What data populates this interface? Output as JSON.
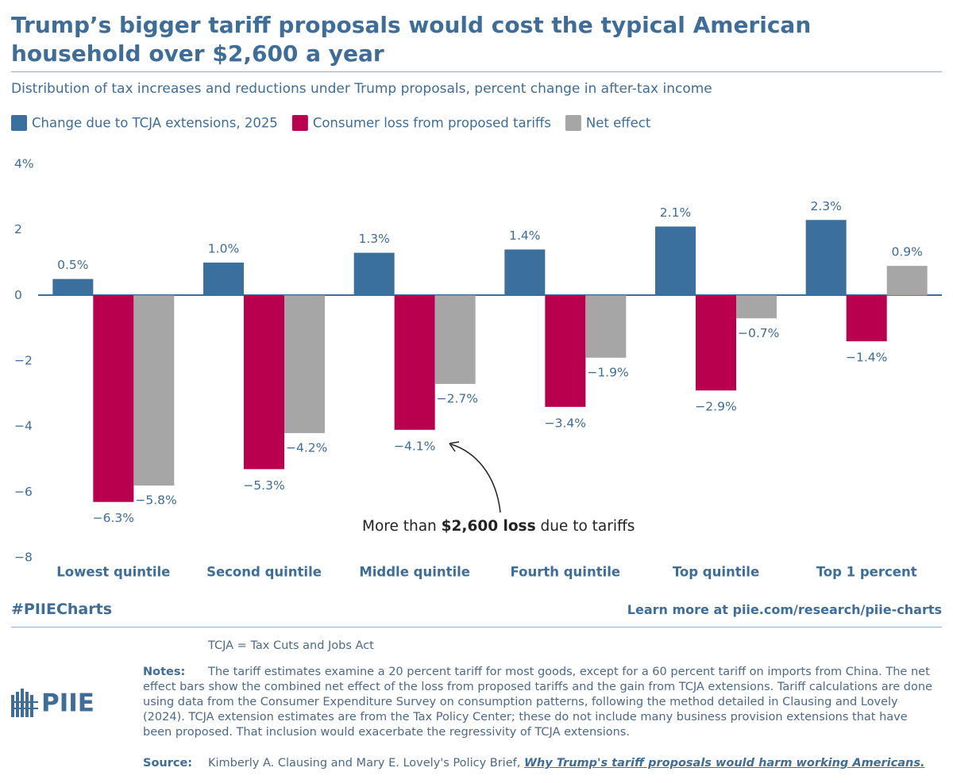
{
  "chart_data": {
    "type": "bar",
    "title": "Trump’s bigger tariff proposals would cost the typical American household over $2,600 a year",
    "subtitle": "Distribution of tax increases and reductions under Trump proposals, percent change in after-tax income",
    "categories": [
      "Lowest quintile",
      "Second quintile",
      "Middle quintile",
      "Fourth quintile",
      "Top quintile",
      "Top 1 percent"
    ],
    "series": [
      {
        "name": "Change due to TCJA extensions, 2025",
        "color": "#3a6f9e",
        "values": [
          0.5,
          1.0,
          1.3,
          1.4,
          2.1,
          2.3
        ],
        "value_labels": [
          "0.5%",
          "1.0%",
          "1.3%",
          "1.4%",
          "2.1%",
          "2.3%"
        ]
      },
      {
        "name": "Consumer loss from proposed tariffs",
        "color": "#b8004f",
        "values": [
          -6.3,
          -5.3,
          -4.1,
          -3.4,
          -2.9,
          -1.4
        ],
        "value_labels": [
          "−6.3%",
          "−5.3%",
          "−4.1%",
          "−3.4%",
          "−2.9%",
          "−1.4%"
        ]
      },
      {
        "name": "Net effect",
        "color": "#a6a6a6",
        "values": [
          -5.8,
          -4.2,
          -2.7,
          -1.9,
          -0.7,
          0.9
        ],
        "value_labels": [
          "−5.8%",
          "−4.2%",
          "−2.7%",
          "−1.9%",
          "−0.7%",
          "0.9%"
        ]
      }
    ],
    "ylim": [
      -8,
      4
    ],
    "yticks": [
      {
        "value": 4,
        "label": "4%"
      },
      2,
      0,
      {
        "value": -2,
        "label": "−2"
      },
      {
        "value": -4,
        "label": "−4"
      },
      {
        "value": -6,
        "label": "−6"
      },
      {
        "value": -8,
        "label": "−8"
      }
    ],
    "grid": false,
    "legend": "top-left",
    "annotation": {
      "prefix": "More than ",
      "bold": "$2,600 loss",
      "suffix": " due to tariffs"
    }
  },
  "footer": {
    "hashtag": "#PIIECharts",
    "learn_more": "Learn more at piie.com/research/piie-charts",
    "abbreviation": "TCJA = Tax Cuts and Jobs Act",
    "notes_label": "Notes:",
    "notes": "The tariff estimates examine a 20 percent tariff for most goods, except for a 60 percent tariff on imports from China. The net effect bars show the combined net effect of the loss from proposed tariffs and the gain from TCJA extensions. Tariff calculations are done using data from the Consumer Expenditure Survey on consumption patterns, following the method detailed in Clausing and Lovely (2024). TCJA extension estimates are from the Tax Policy Center; these do not include many business provision extensions that have been proposed. That inclusion would exacerbate the regressivity of TCJA extensions.",
    "source_label": "Source:",
    "source": "Kimberly A. Clausing and Mary E. Lovely's Policy Brief, ",
    "source_link": "Why Trump's tariff proposals would harm working Americans.",
    "logo": "PIIE"
  }
}
